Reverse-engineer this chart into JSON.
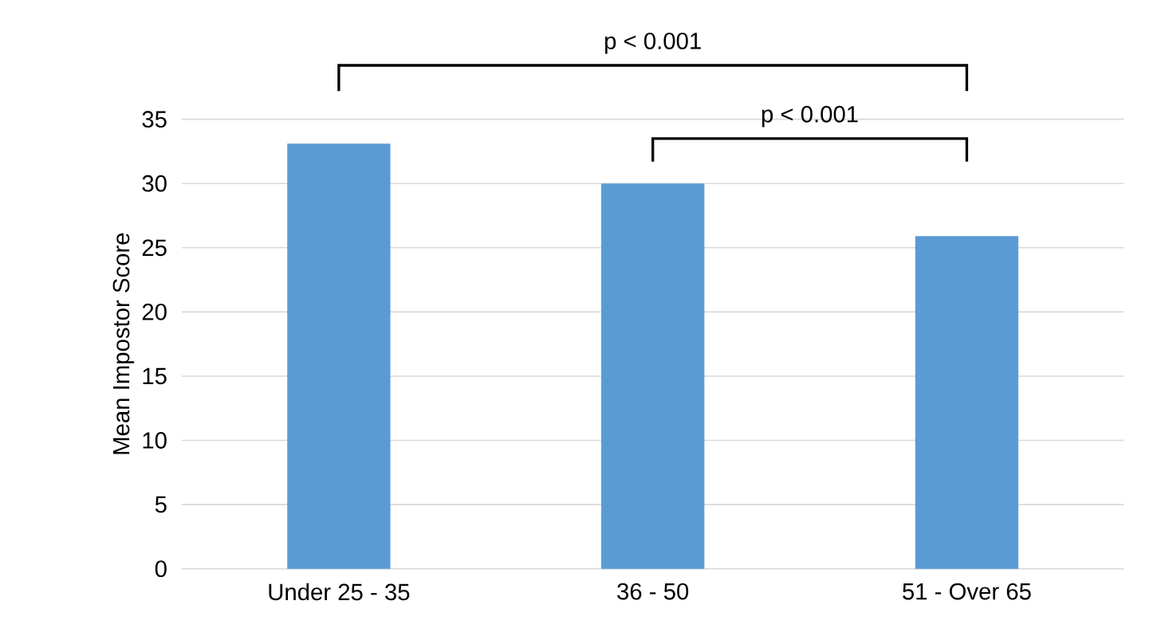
{
  "chart_data": {
    "type": "bar",
    "ylabel": "Mean Impostor Score",
    "categories": [
      "Under 25 - 35",
      "36 - 50",
      "51 - Over 65"
    ],
    "values": [
      33.1,
      30.0,
      25.9
    ],
    "color": "#5b9bd5",
    "ylim": [
      0,
      35
    ],
    "yticks": [
      0,
      5,
      10,
      15,
      20,
      25,
      30,
      35
    ],
    "grid": "y",
    "annotations": [
      "p < 0.001",
      "p < 0.001"
    ]
  }
}
